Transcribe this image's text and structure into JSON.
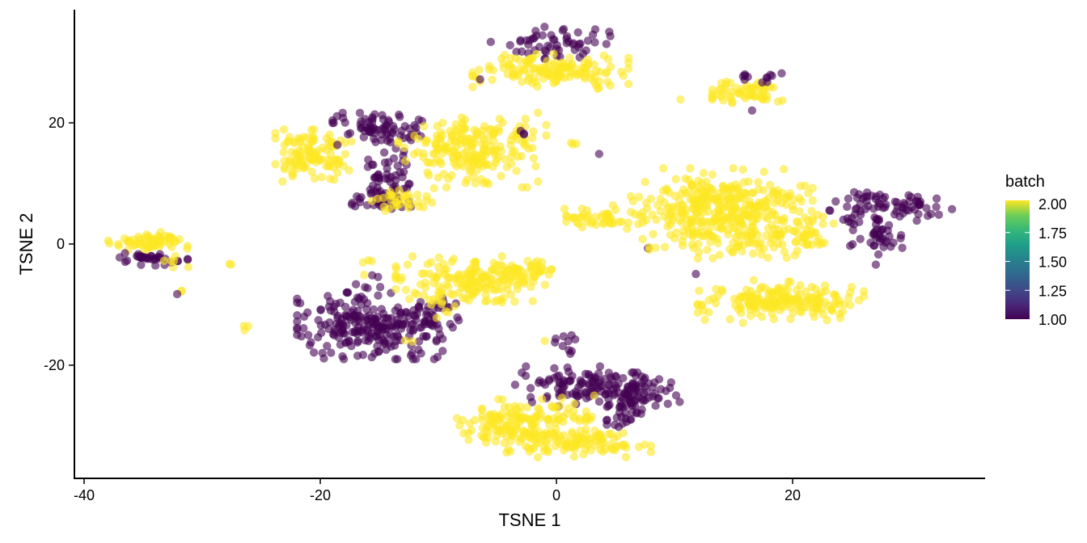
{
  "chart_data": {
    "type": "scatter",
    "title": "",
    "xlabel": "TSNE 1",
    "ylabel": "TSNE 2",
    "xlim": [
      -40.5,
      36.5
    ],
    "ylim": [
      -38,
      38.5
    ],
    "x_ticks": [
      -40,
      -20,
      0,
      20
    ],
    "x_tick_labels": [
      "-40",
      "-20",
      "0",
      "20"
    ],
    "y_ticks": [
      -20,
      0,
      20
    ],
    "y_tick_labels": [
      "-20",
      "0",
      "20"
    ],
    "grid": false,
    "point_alpha": 0.6,
    "point_radius_px": 5,
    "legend": {
      "title": "batch",
      "type": "colorbar",
      "position": "right",
      "palette": "viridis",
      "breaks": [
        2.0,
        1.75,
        1.5,
        1.25,
        1.0
      ],
      "labels": [
        "2.00",
        "1.75",
        "1.50",
        "1.25",
        "1.00"
      ],
      "range": [
        1,
        2
      ]
    },
    "colors": {
      "batch_1": "#440154",
      "batch_2": "#FDE725"
    },
    "clusters": [
      {
        "batch": 2,
        "cx": -34.5,
        "cy": 0.2,
        "sx": 1.6,
        "sy": 0.8,
        "n": 70
      },
      {
        "batch": 1,
        "cx": -34.3,
        "cy": -2.5,
        "sx": 1.4,
        "sy": 0.5,
        "n": 35
      },
      {
        "batch": 2,
        "cx": -32.5,
        "cy": -3.2,
        "sx": 0.6,
        "sy": 0.6,
        "n": 6
      },
      {
        "batch": 2,
        "cx": -32.0,
        "cy": -8.0,
        "sx": 0.2,
        "sy": 0.2,
        "n": 2
      },
      {
        "batch": 1,
        "cx": -31.9,
        "cy": -8.3,
        "sx": 0.1,
        "sy": 0.1,
        "n": 1
      },
      {
        "batch": 2,
        "cx": -27.3,
        "cy": -3.4,
        "sx": 0.2,
        "sy": 0.2,
        "n": 2
      },
      {
        "batch": 2,
        "cx": -26.2,
        "cy": -13.7,
        "sx": 0.2,
        "sy": 0.5,
        "n": 3
      },
      {
        "batch": 2,
        "cx": -20.5,
        "cy": 14.5,
        "sx": 1.5,
        "sy": 2.0,
        "n": 110
      },
      {
        "batch": 1,
        "cx": -15.0,
        "cy": 19.0,
        "sx": 1.8,
        "sy": 1.2,
        "n": 70
      },
      {
        "batch": 1,
        "cx": -14.5,
        "cy": 12.0,
        "sx": 1.0,
        "sy": 2.5,
        "n": 55
      },
      {
        "batch": 1,
        "cx": -15.0,
        "cy": 7.0,
        "sx": 1.5,
        "sy": 1.2,
        "n": 30
      },
      {
        "batch": 2,
        "cx": -13.0,
        "cy": 7.0,
        "sx": 1.2,
        "sy": 1.0,
        "n": 35
      },
      {
        "batch": 2,
        "cx": -7.5,
        "cy": 15.5,
        "sx": 2.7,
        "sy": 2.8,
        "n": 190
      },
      {
        "batch": 2,
        "cx": -3.5,
        "cy": 18.0,
        "sx": 1.2,
        "sy": 1.2,
        "n": 20
      },
      {
        "batch": 1,
        "cx": -2.8,
        "cy": 18.0,
        "sx": 0.3,
        "sy": 0.5,
        "n": 3
      },
      {
        "batch": 2,
        "cx": 1.5,
        "cy": 16.6,
        "sx": 0.3,
        "sy": 0.3,
        "n": 3
      },
      {
        "batch": 1,
        "cx": 3.8,
        "cy": 15.0,
        "sx": 0.1,
        "sy": 0.1,
        "n": 1
      },
      {
        "batch": 2,
        "cx": 4.0,
        "cy": 14.5,
        "sx": 0.3,
        "sy": 0.3,
        "n": 0
      },
      {
        "batch": 1,
        "cx": -0.5,
        "cy": 33.2,
        "sx": 2.3,
        "sy": 1.2,
        "n": 55
      },
      {
        "batch": 2,
        "cx": -0.5,
        "cy": 28.5,
        "sx": 3.0,
        "sy": 1.3,
        "n": 140
      },
      {
        "batch": 1,
        "cx": -6.3,
        "cy": 27.2,
        "sx": 0.1,
        "sy": 0.1,
        "n": 1
      },
      {
        "batch": 2,
        "cx": 16.5,
        "cy": 25.0,
        "sx": 1.5,
        "sy": 1.0,
        "n": 60
      },
      {
        "batch": 1,
        "cx": 17.5,
        "cy": 27.5,
        "sx": 1.0,
        "sy": 0.5,
        "n": 12
      },
      {
        "batch": 1,
        "cx": 16.5,
        "cy": 22.0,
        "sx": 0.2,
        "sy": 0.2,
        "n": 1
      },
      {
        "batch": 2,
        "cx": 10.3,
        "cy": 24.3,
        "sx": 0.2,
        "sy": 0.2,
        "n": 1
      },
      {
        "batch": 2,
        "cx": 3.5,
        "cy": 4.5,
        "sx": 1.6,
        "sy": 0.9,
        "n": 45
      },
      {
        "batch": 2,
        "cx": 14.0,
        "cy": 7.0,
        "sx": 3.5,
        "sy": 2.5,
        "n": 260
      },
      {
        "batch": 2,
        "cx": 15.0,
        "cy": 2.0,
        "sx": 3.5,
        "sy": 2.0,
        "n": 150
      },
      {
        "batch": 2,
        "cx": 19.0,
        "cy": -9.5,
        "sx": 3.2,
        "sy": 1.6,
        "n": 190
      },
      {
        "batch": 2,
        "cx": 21.5,
        "cy": 1.5,
        "sx": 1.0,
        "sy": 1.5,
        "n": 20
      },
      {
        "batch": 1,
        "cx": 7.8,
        "cy": -0.8,
        "sx": 0.2,
        "sy": 0.2,
        "n": 1
      },
      {
        "batch": 2,
        "cx": 7.9,
        "cy": -0.6,
        "sx": 0.3,
        "sy": 0.3,
        "n": 2
      },
      {
        "batch": 1,
        "cx": 12.0,
        "cy": -5.0,
        "sx": 0.1,
        "sy": 0.1,
        "n": 1
      },
      {
        "batch": 1,
        "cx": 28.0,
        "cy": 6.5,
        "sx": 2.5,
        "sy": 1.2,
        "n": 70
      },
      {
        "batch": 1,
        "cx": 27.5,
        "cy": 1.0,
        "sx": 1.2,
        "sy": 2.0,
        "n": 40
      },
      {
        "batch": 1,
        "cx": 24.8,
        "cy": 4.0,
        "sx": 0.4,
        "sy": 1.0,
        "n": 6
      },
      {
        "batch": 1,
        "cx": 23.7,
        "cy": 7.0,
        "sx": 0.1,
        "sy": 0.1,
        "n": 1
      },
      {
        "batch": 1,
        "cx": -15.8,
        "cy": -13.5,
        "sx": 2.8,
        "sy": 2.5,
        "n": 220
      },
      {
        "batch": 1,
        "cx": -11.0,
        "cy": -12.0,
        "sx": 1.3,
        "sy": 1.5,
        "n": 40
      },
      {
        "batch": 1,
        "cx": -16.0,
        "cy": -7.0,
        "sx": 0.8,
        "sy": 1.0,
        "n": 8
      },
      {
        "batch": 2,
        "cx": -16.2,
        "cy": -5.0,
        "sx": 0.2,
        "sy": 0.2,
        "n": 1
      },
      {
        "batch": 2,
        "cx": -15.5,
        "cy": -2.8,
        "sx": 0.4,
        "sy": 0.2,
        "n": 3
      },
      {
        "batch": 2,
        "cx": -12.6,
        "cy": -16.0,
        "sx": 0.2,
        "sy": 0.4,
        "n": 2
      },
      {
        "batch": 2,
        "cx": -7.0,
        "cy": -6.0,
        "sx": 3.0,
        "sy": 1.8,
        "n": 170
      },
      {
        "batch": 2,
        "cx": -9.5,
        "cy": -10.0,
        "sx": 0.8,
        "sy": 1.0,
        "n": 12
      },
      {
        "batch": 2,
        "cx": -2.5,
        "cy": -4.5,
        "sx": 1.5,
        "sy": 0.8,
        "n": 30
      },
      {
        "batch": 1,
        "cx": 2.0,
        "cy": -23.5,
        "sx": 2.5,
        "sy": 1.5,
        "n": 90
      },
      {
        "batch": 1,
        "cx": 6.5,
        "cy": -24.5,
        "sx": 1.8,
        "sy": 1.5,
        "n": 90
      },
      {
        "batch": 1,
        "cx": 5.5,
        "cy": -29.0,
        "sx": 1.0,
        "sy": 1.0,
        "n": 15
      },
      {
        "batch": 1,
        "cx": 0.8,
        "cy": -16.5,
        "sx": 0.6,
        "sy": 0.8,
        "n": 10
      },
      {
        "batch": 2,
        "cx": -0.9,
        "cy": -16.0,
        "sx": 0.1,
        "sy": 0.1,
        "n": 1
      },
      {
        "batch": 2,
        "cx": 0.5,
        "cy": -25.5,
        "sx": 0.1,
        "sy": 0.1,
        "n": 1
      },
      {
        "batch": 2,
        "cx": 3.2,
        "cy": -25.0,
        "sx": 0.1,
        "sy": 0.1,
        "n": 1
      },
      {
        "batch": 2,
        "cx": -3.0,
        "cy": -30.0,
        "sx": 2.5,
        "sy": 2.0,
        "n": 170
      },
      {
        "batch": 2,
        "cx": 2.5,
        "cy": -33.0,
        "sx": 2.5,
        "sy": 1.0,
        "n": 80
      },
      {
        "batch": 2,
        "cx": 2.5,
        "cy": -28.5,
        "sx": 1.2,
        "sy": 0.6,
        "n": 10
      }
    ]
  }
}
